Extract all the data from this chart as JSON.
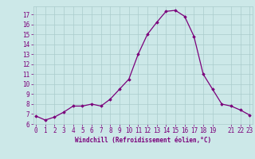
{
  "x": [
    0,
    1,
    2,
    3,
    4,
    5,
    6,
    7,
    8,
    9,
    10,
    11,
    12,
    13,
    14,
    15,
    16,
    17,
    18,
    19,
    20,
    21,
    22,
    23
  ],
  "y": [
    6.8,
    6.4,
    6.7,
    7.2,
    7.8,
    7.8,
    8.0,
    7.8,
    8.5,
    9.5,
    10.5,
    13.0,
    15.0,
    16.2,
    17.3,
    17.4,
    16.8,
    14.8,
    11.0,
    9.5,
    8.0,
    7.8,
    7.4,
    6.9
  ],
  "xlim": [
    -0.3,
    23.3
  ],
  "ylim": [
    6,
    17.8
  ],
  "yticks": [
    6,
    7,
    8,
    9,
    10,
    11,
    12,
    13,
    14,
    15,
    16,
    17
  ],
  "xticks": [
    0,
    1,
    2,
    3,
    4,
    5,
    6,
    7,
    8,
    9,
    10,
    11,
    12,
    13,
    14,
    15,
    16,
    17,
    18,
    19,
    21,
    22,
    23
  ],
  "xtick_labels": [
    "0",
    "1",
    "2",
    "3",
    "4",
    "5",
    "6",
    "7",
    "8",
    "9",
    "10",
    "11",
    "12",
    "13",
    "14",
    "15",
    "16",
    "17",
    "18",
    "19",
    "21",
    "22",
    "23"
  ],
  "line_color": "#7B007B",
  "marker": "D",
  "marker_size": 1.8,
  "bg_color": "#cce8e8",
  "grid_color": "#aacccc",
  "xlabel": "Windchill (Refroidissement éolien,°C)",
  "xlabel_color": "#7B007B",
  "tick_color": "#7B007B",
  "tick_fontsize": 5.5,
  "xlabel_fontsize": 5.5
}
